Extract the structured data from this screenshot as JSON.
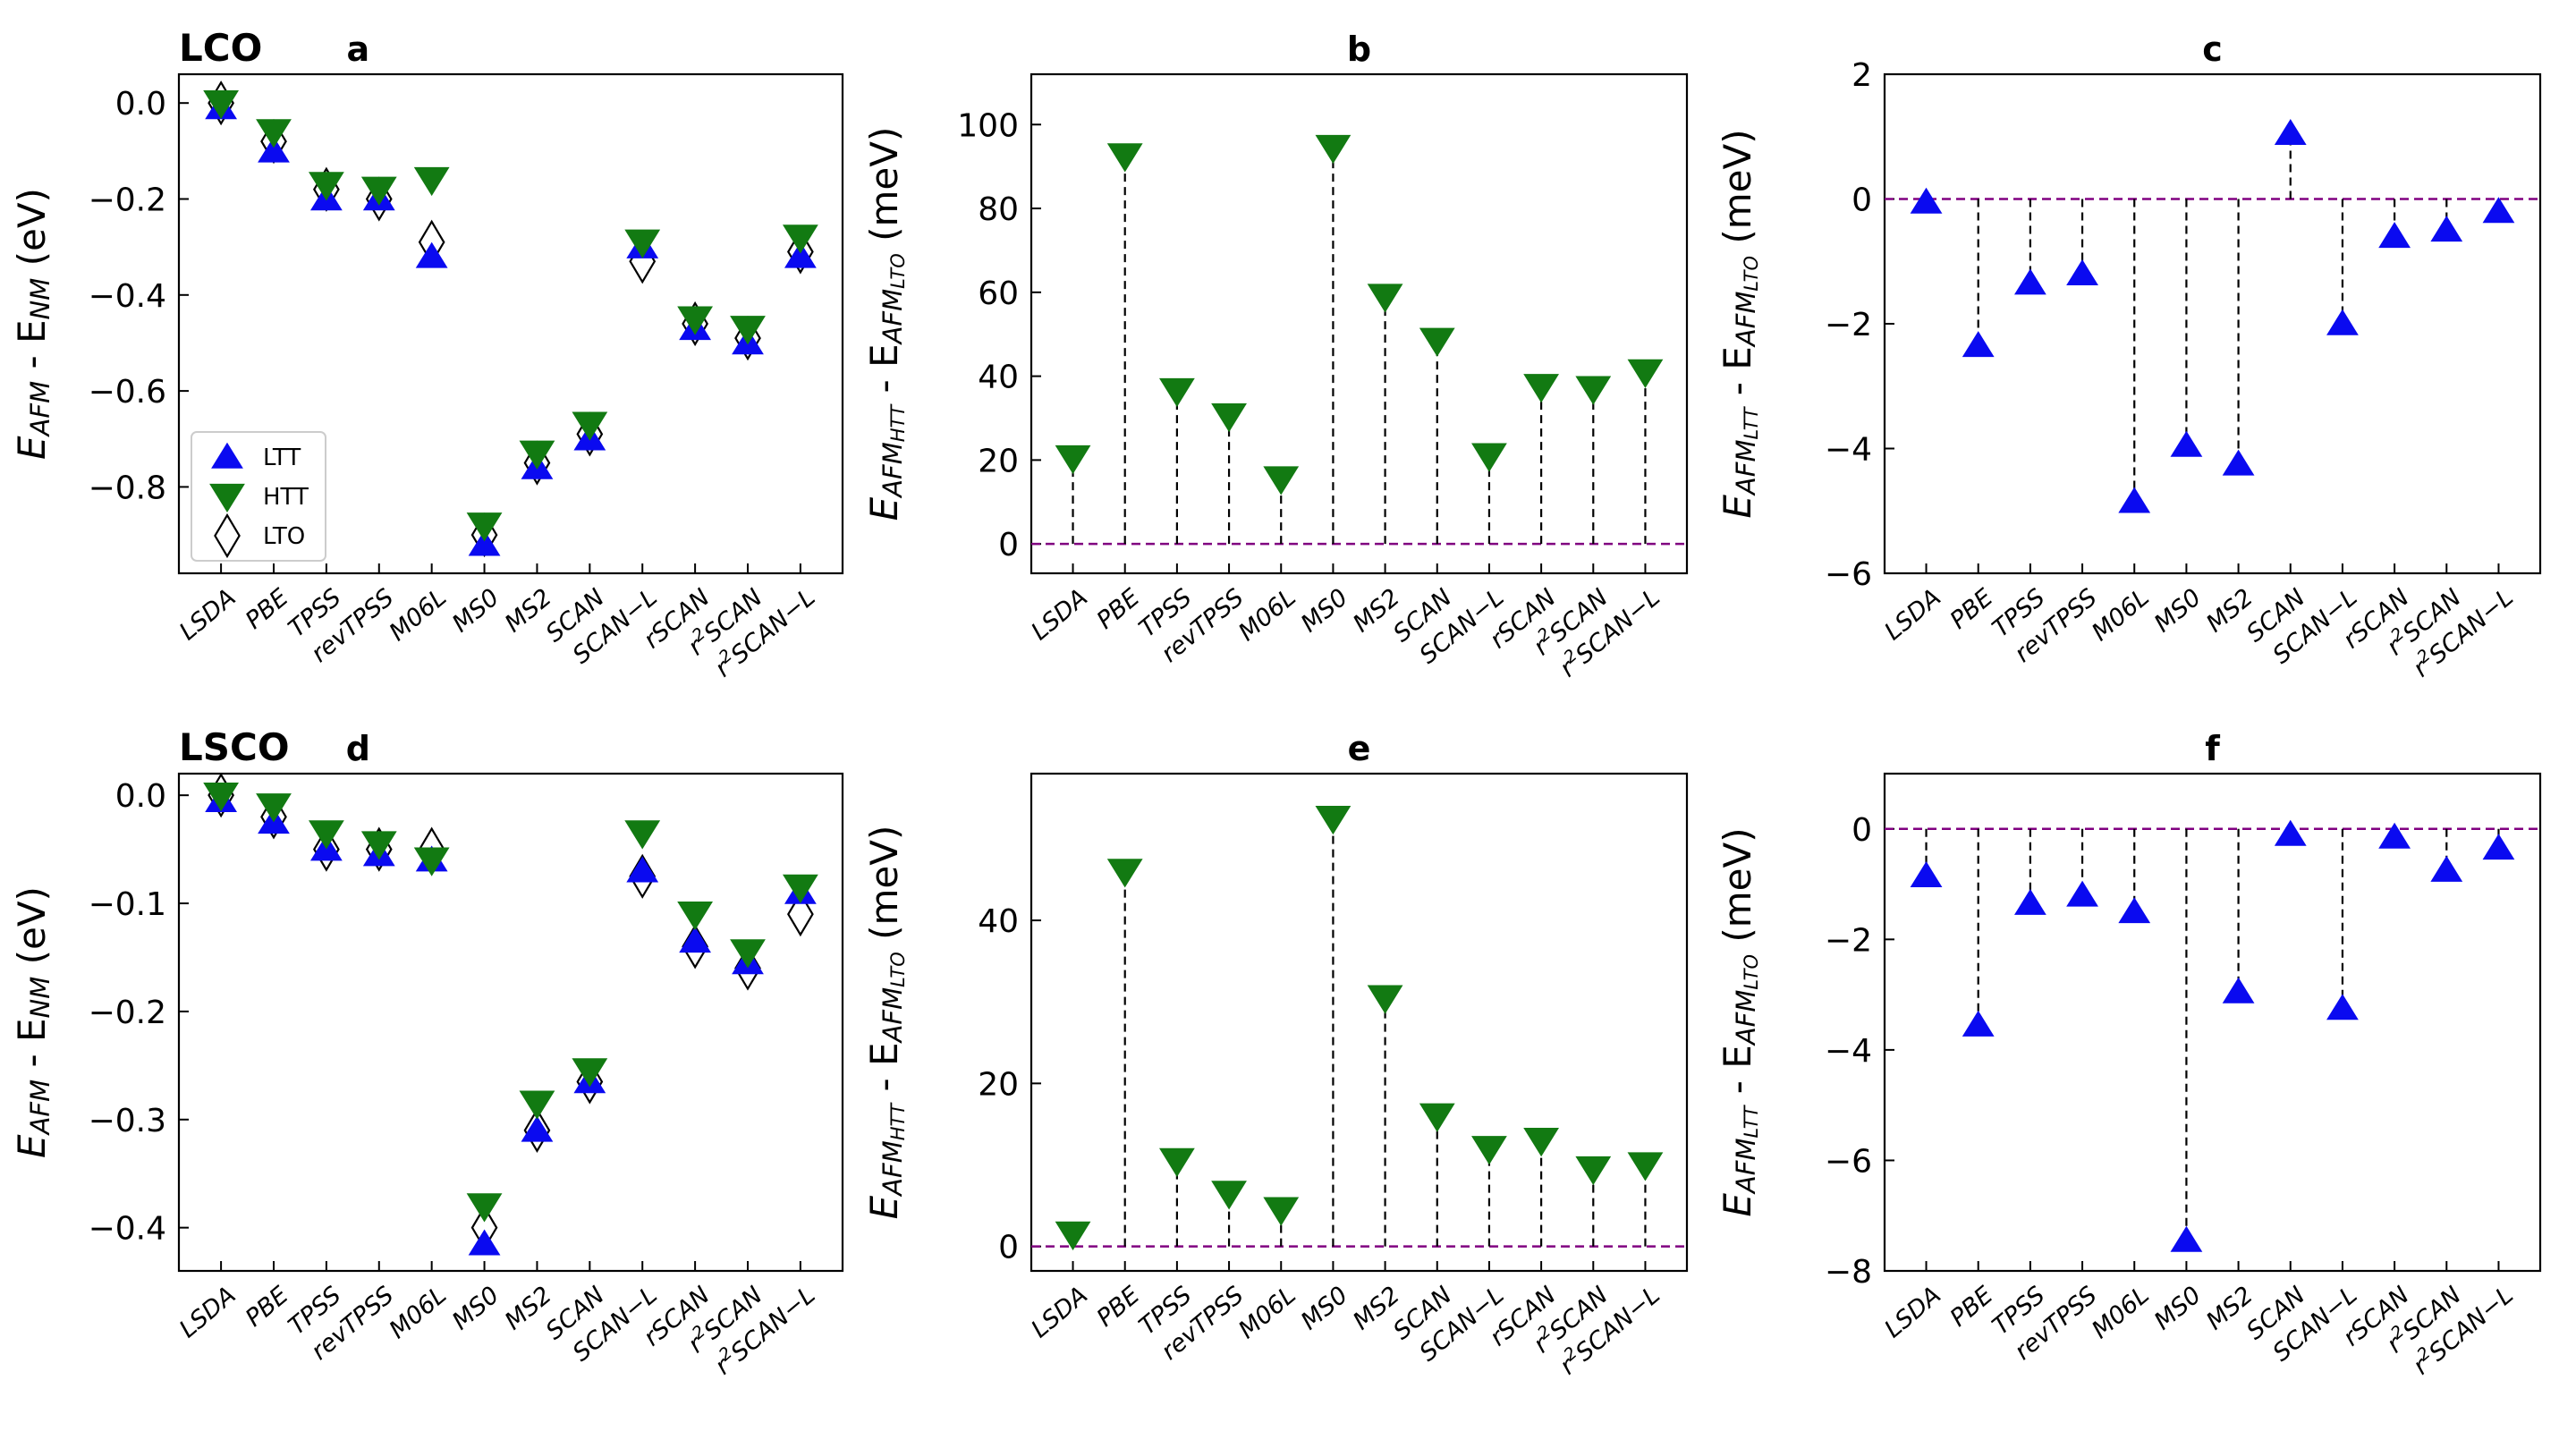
{
  "functionals": [
    "LSDA",
    "PBE",
    "TPSS",
    "revTPSS",
    "M06L",
    "MS0",
    "MS2",
    "SCAN",
    "SCAN−L",
    "rSCAN",
    "r²SCAN",
    "r²SCAN−L"
  ],
  "colors": {
    "LTT": "#0a0af0",
    "HTT": "#127a12",
    "LTO": "#ffffff",
    "zero_line": "#800080"
  },
  "legend": {
    "LTT": "LTT",
    "HTT": "HTT",
    "LTO": "LTO"
  },
  "chart_data": [
    {
      "id": "a",
      "type": "scatter",
      "title": "a",
      "system_label": "LCO",
      "ylabel": {
        "p1": "E",
        "s1": "AFM",
        "p2": " - E",
        "s2": "NM",
        "p3": " (eV)"
      },
      "ylim": [
        -0.98,
        0.06
      ],
      "yticks": [
        0.0,
        -0.2,
        -0.4,
        -0.6,
        -0.8
      ],
      "yticklabels": [
        "0.0",
        "−0.2",
        "−0.4",
        "−0.6",
        "−0.8"
      ],
      "legend_position": "lower-left",
      "series": [
        {
          "name": "LTO",
          "values": [
            0.0,
            -0.08,
            -0.18,
            -0.2,
            -0.29,
            -0.9,
            -0.75,
            -0.69,
            -0.33,
            -0.46,
            -0.49,
            -0.31
          ]
        },
        {
          "name": "LTT",
          "values": [
            -0.01,
            -0.1,
            -0.2,
            -0.2,
            -0.32,
            -0.92,
            -0.76,
            -0.7,
            -0.3,
            -0.47,
            -0.5,
            -0.32
          ]
        },
        {
          "name": "HTT",
          "values": [
            -0.0,
            -0.06,
            -0.17,
            -0.18,
            -0.16,
            -0.88,
            -0.73,
            -0.67,
            -0.29,
            -0.45,
            -0.47,
            -0.28
          ]
        }
      ]
    },
    {
      "id": "b",
      "type": "stem",
      "title": "b",
      "ylabel": {
        "p1": "E",
        "s1": "AFM",
        "ss1": "HTT",
        "p2": " - E",
        "s2": "AFM",
        "ss2": "LTO",
        "p3": " (meV)"
      },
      "ylim": [
        -7,
        112
      ],
      "yticks": [
        0,
        20,
        40,
        60,
        80,
        100
      ],
      "yticklabels": [
        "0",
        "20",
        "40",
        "60",
        "80",
        "100"
      ],
      "marker": "HTT",
      "values": [
        20.5,
        92.5,
        36.5,
        30.5,
        15.5,
        94.5,
        59.0,
        48.5,
        21.0,
        37.5,
        37.0,
        41.0
      ]
    },
    {
      "id": "c",
      "type": "stem",
      "title": "c",
      "ylabel": {
        "p1": "E",
        "s1": "AFM",
        "ss1": "LTT",
        "p2": " - E",
        "s2": "AFM",
        "ss2": "LTO",
        "p3": " (meV)"
      },
      "ylim": [
        -6,
        2
      ],
      "yticks": [
        2,
        0,
        -2,
        -4,
        -6
      ],
      "yticklabels": [
        "2",
        "0",
        "−2",
        "−4",
        "−6"
      ],
      "marker": "LTT",
      "values": [
        -0.05,
        -2.35,
        -1.35,
        -1.2,
        -4.85,
        -3.95,
        -4.25,
        1.05,
        -2.0,
        -0.6,
        -0.5,
        -0.2
      ]
    },
    {
      "id": "d",
      "type": "scatter",
      "title": "d",
      "system_label": "LSCO",
      "ylabel": {
        "p1": "E",
        "s1": "AFM",
        "p2": " - E",
        "s2": "NM",
        "p3": " (eV)"
      },
      "ylim": [
        -0.44,
        0.02
      ],
      "yticks": [
        0.0,
        -0.1,
        -0.2,
        -0.3,
        -0.4
      ],
      "yticklabels": [
        "0.0",
        "−0.1",
        "−0.2",
        "−0.3",
        "−0.4"
      ],
      "series": [
        {
          "name": "LTO",
          "values": [
            -0.0,
            -0.02,
            -0.05,
            -0.05,
            -0.05,
            -0.4,
            -0.31,
            -0.265,
            -0.075,
            -0.14,
            -0.16,
            -0.11
          ]
        },
        {
          "name": "LTT",
          "values": [
            -0.005,
            -0.025,
            -0.05,
            -0.055,
            -0.06,
            -0.415,
            -0.31,
            -0.265,
            -0.07,
            -0.135,
            -0.155,
            -0.09
          ]
        },
        {
          "name": "HTT",
          "values": [
            -0.0,
            -0.01,
            -0.035,
            -0.045,
            -0.06,
            -0.38,
            -0.285,
            -0.255,
            -0.035,
            -0.11,
            -0.145,
            -0.085
          ]
        }
      ]
    },
    {
      "id": "e",
      "type": "stem",
      "title": "e",
      "ylabel": {
        "p1": "E",
        "s1": "AFM",
        "ss1": "HTT",
        "p2": " - E",
        "s2": "AFM",
        "ss2": "LTO",
        "p3": " (meV)"
      },
      "ylim": [
        -3,
        58
      ],
      "yticks": [
        0,
        20,
        40
      ],
      "yticklabels": [
        "0",
        "20",
        "40"
      ],
      "marker": "HTT",
      "values": [
        1.5,
        46.0,
        10.5,
        6.5,
        4.5,
        52.5,
        30.5,
        16.0,
        12.0,
        13.0,
        9.5,
        10.0
      ]
    },
    {
      "id": "f",
      "type": "stem",
      "title": "f",
      "ylabel": {
        "p1": "E",
        "s1": "AFM",
        "ss1": "LTT",
        "p2": " - E",
        "s2": "AFM",
        "ss2": "LTO",
        "p3": " (meV)"
      },
      "ylim": [
        -8,
        1
      ],
      "yticks": [
        0,
        -2,
        -4,
        -6,
        -8
      ],
      "yticklabels": [
        "0",
        "−2",
        "−4",
        "−6",
        "−8"
      ],
      "marker": "LTT",
      "values": [
        -0.85,
        -3.55,
        -1.35,
        -1.2,
        -1.5,
        -7.45,
        -2.95,
        -0.1,
        -3.25,
        -0.15,
        -0.75,
        -0.35
      ]
    }
  ]
}
